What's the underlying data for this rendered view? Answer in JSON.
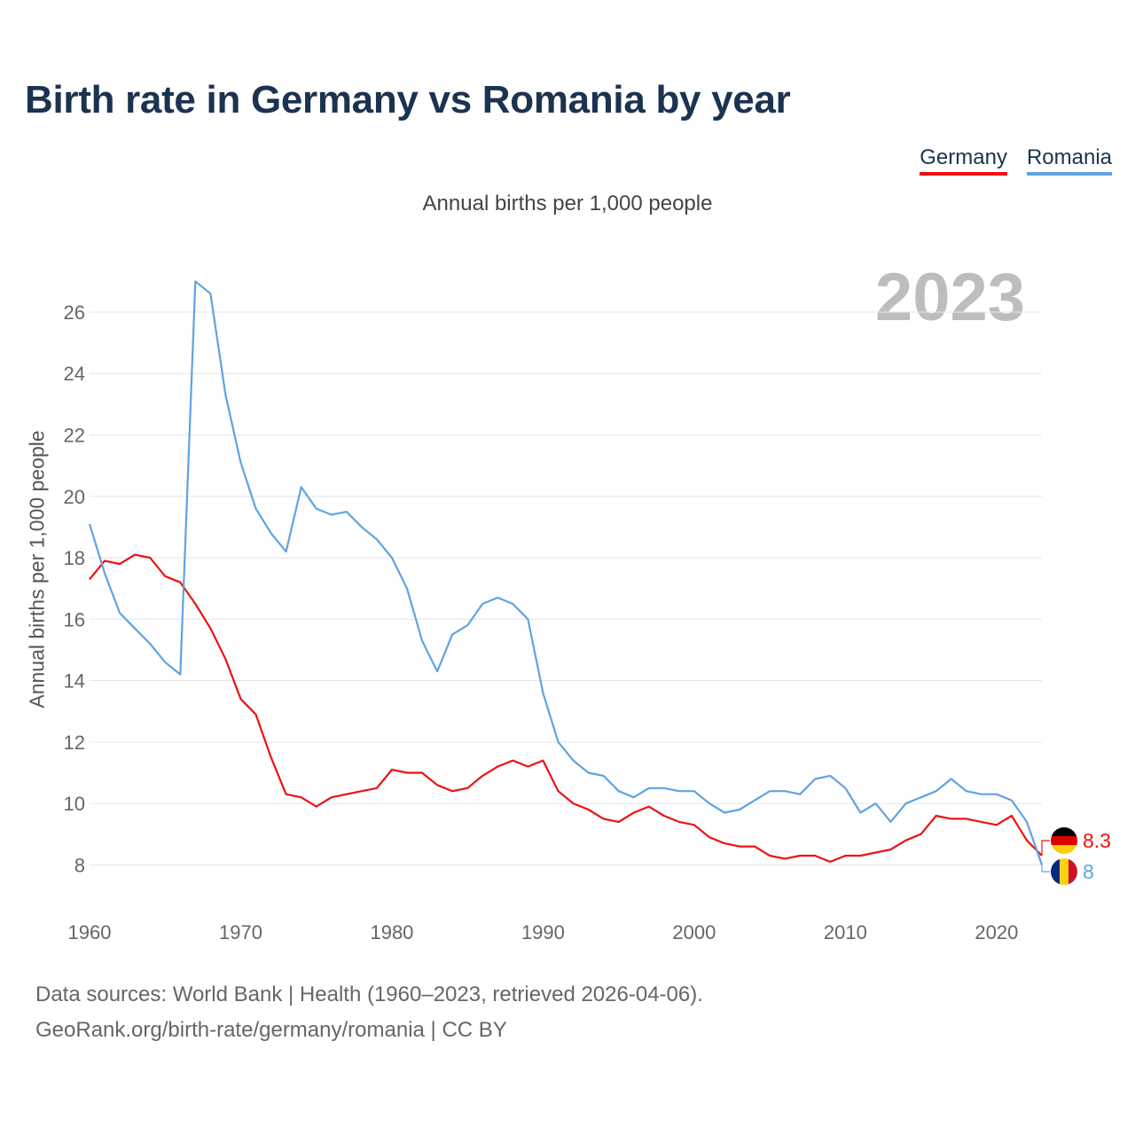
{
  "title": "Birth rate in Germany vs Romania by year",
  "subtitle": "Annual births per 1,000 people",
  "legend": {
    "germany": "Germany",
    "romania": "Romania"
  },
  "year_label": "2023",
  "footer": {
    "line1": "Data sources: World Bank | Health (1960–2023, retrieved 2026-04-06).",
    "line2": "GeoRank.org/birth-rate/germany/romania | CC BY"
  },
  "chart_data": {
    "type": "line",
    "title": "Birth rate in Germany vs Romania by year",
    "subtitle": "Annual births per 1,000 people",
    "xlabel": "",
    "ylabel": "Annual births per 1,000 people",
    "xlim": [
      1960,
      2023
    ],
    "ylim": [
      7.0,
      27.5
    ],
    "x_ticks": [
      1960,
      1970,
      1980,
      1990,
      2000,
      2010,
      2020
    ],
    "y_ticks": [
      8,
      10,
      12,
      14,
      16,
      18,
      20,
      22,
      24,
      26
    ],
    "x": [
      1960,
      1961,
      1962,
      1963,
      1964,
      1965,
      1966,
      1967,
      1968,
      1969,
      1970,
      1971,
      1972,
      1973,
      1974,
      1975,
      1976,
      1977,
      1978,
      1979,
      1980,
      1981,
      1982,
      1983,
      1984,
      1985,
      1986,
      1987,
      1988,
      1989,
      1990,
      1991,
      1992,
      1993,
      1994,
      1995,
      1996,
      1997,
      1998,
      1999,
      2000,
      2001,
      2002,
      2003,
      2004,
      2005,
      2006,
      2007,
      2008,
      2009,
      2010,
      2011,
      2012,
      2013,
      2014,
      2015,
      2016,
      2017,
      2018,
      2019,
      2020,
      2021,
      2022,
      2023
    ],
    "series": [
      {
        "name": "Germany",
        "color": "#ee1111",
        "end_label": "8.3",
        "values": [
          17.3,
          17.9,
          17.8,
          18.1,
          18.0,
          17.4,
          17.2,
          16.5,
          15.7,
          14.7,
          13.4,
          12.9,
          11.5,
          10.3,
          10.2,
          9.9,
          10.2,
          10.3,
          10.4,
          10.5,
          11.1,
          11.0,
          11.0,
          10.6,
          10.4,
          10.5,
          10.9,
          11.2,
          11.4,
          11.2,
          11.4,
          10.4,
          10.0,
          9.8,
          9.5,
          9.4,
          9.7,
          9.9,
          9.6,
          9.4,
          9.3,
          8.9,
          8.7,
          8.6,
          8.6,
          8.3,
          8.2,
          8.3,
          8.3,
          8.1,
          8.3,
          8.3,
          8.4,
          8.5,
          8.8,
          9.0,
          9.6,
          9.5,
          9.5,
          9.4,
          9.3,
          9.6,
          8.8,
          8.3
        ]
      },
      {
        "name": "Romania",
        "color": "#5fa3e3",
        "end_label": "8",
        "values": [
          19.1,
          17.5,
          16.2,
          15.7,
          15.2,
          14.6,
          14.2,
          27.0,
          26.6,
          23.3,
          21.1,
          19.6,
          18.8,
          18.2,
          20.3,
          19.6,
          19.4,
          19.5,
          19.0,
          18.6,
          18.0,
          17.0,
          15.3,
          14.3,
          15.5,
          15.8,
          16.5,
          16.7,
          16.5,
          16.0,
          13.6,
          12.0,
          11.4,
          11.0,
          10.9,
          10.4,
          10.2,
          10.5,
          10.5,
          10.4,
          10.4,
          10.0,
          9.7,
          9.8,
          10.1,
          10.4,
          10.4,
          10.3,
          10.8,
          10.9,
          10.5,
          9.7,
          10.0,
          9.4,
          10.0,
          10.2,
          10.4,
          10.8,
          10.4,
          10.3,
          10.3,
          10.1,
          9.4,
          8.0
        ]
      }
    ]
  }
}
